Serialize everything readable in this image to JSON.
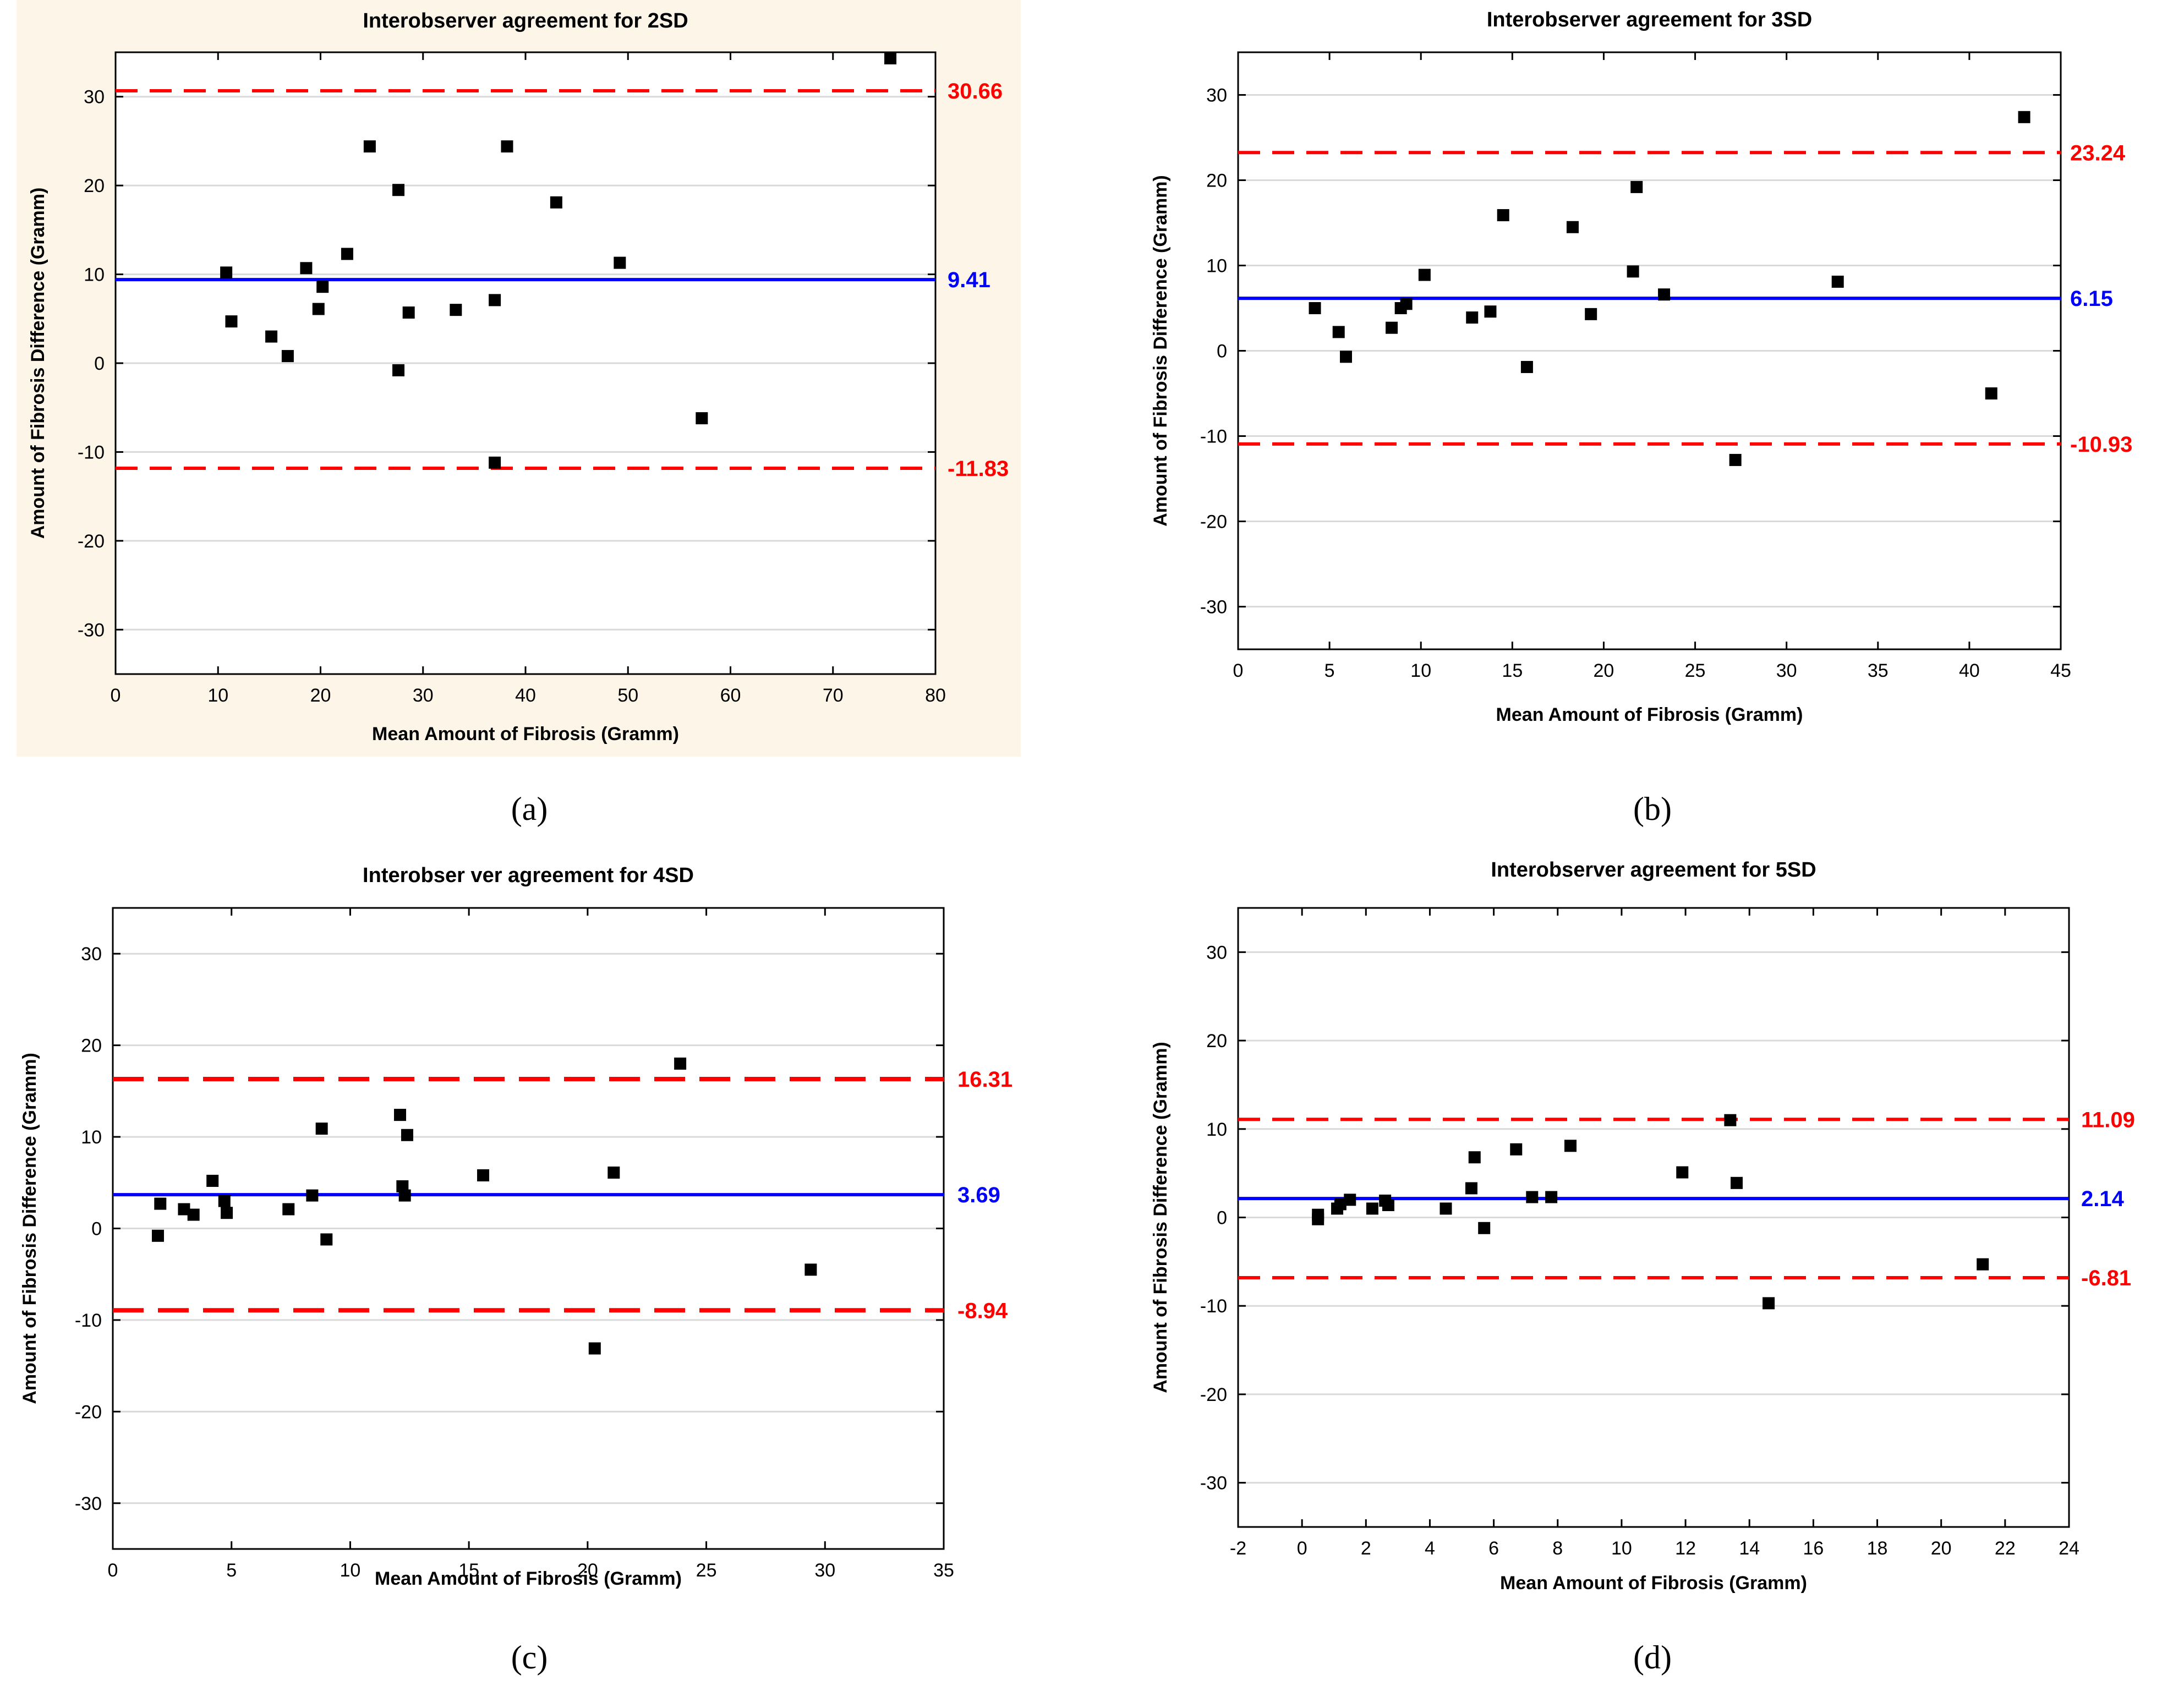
{
  "colors": {
    "mean_line": "#0000ff",
    "limit_line": "#ff0000",
    "point": "#000000",
    "panel_background": "#fdf6e8",
    "grid": "#d9d9d9"
  },
  "chart_data": [
    {
      "type": "scatter",
      "panel_label": "(a)",
      "title": "Interobserver agreement for 2SD",
      "xlabel": "Mean Amount of Fibrosis (Gramm)",
      "ylabel": "Amount of Fibrosis Difference (Gramm)",
      "xlim": [
        0,
        80
      ],
      "ylim": [
        -35,
        35
      ],
      "xticks": [
        0,
        10,
        20,
        30,
        40,
        50,
        60,
        70,
        80
      ],
      "yticks": [
        -30,
        -20,
        -10,
        0,
        10,
        20,
        30
      ],
      "mean_diff": 9.41,
      "upper_loa": 30.66,
      "lower_loa": -11.83,
      "mean_label": "9.41",
      "upper_label": "30.66",
      "lower_label": "-11.83",
      "grid": true,
      "points": [
        [
          10.8,
          10.2
        ],
        [
          11.3,
          4.7
        ],
        [
          15.2,
          3.0
        ],
        [
          16.8,
          0.8
        ],
        [
          18.6,
          10.7
        ],
        [
          19.8,
          6.1
        ],
        [
          20.2,
          8.6
        ],
        [
          22.6,
          12.3
        ],
        [
          24.8,
          24.4
        ],
        [
          27.6,
          19.5
        ],
        [
          27.6,
          -0.8
        ],
        [
          28.6,
          5.7
        ],
        [
          33.2,
          6.0
        ],
        [
          37.0,
          -11.2
        ],
        [
          37.0,
          7.1
        ],
        [
          38.2,
          24.4
        ],
        [
          43.0,
          18.1
        ],
        [
          49.2,
          11.3
        ],
        [
          57.2,
          -6.2
        ],
        [
          75.6,
          34.8
        ]
      ]
    },
    {
      "type": "scatter",
      "panel_label": "(b)",
      "title": "Interobserver agreement for 3SD",
      "xlabel": "Mean Amount of Fibrosis (Gramm)",
      "ylabel": "Amount of Fibrosis Difference (Gramm)",
      "xlim": [
        0,
        45
      ],
      "ylim": [
        -35,
        35
      ],
      "xticks": [
        0,
        5,
        10,
        15,
        20,
        25,
        30,
        35,
        40,
        45
      ],
      "yticks": [
        -30,
        -20,
        -10,
        0,
        10,
        20,
        30
      ],
      "mean_diff": 6.15,
      "upper_loa": 23.24,
      "lower_loa": -10.93,
      "mean_label": "6.15",
      "upper_label": "23.24",
      "lower_label": "-10.93",
      "grid": true,
      "points": [
        [
          4.2,
          5.0
        ],
        [
          5.5,
          2.2
        ],
        [
          5.9,
          -0.7
        ],
        [
          8.4,
          2.7
        ],
        [
          8.9,
          5.0
        ],
        [
          9.2,
          5.5
        ],
        [
          10.2,
          8.9
        ],
        [
          12.8,
          3.9
        ],
        [
          13.8,
          4.6
        ],
        [
          14.5,
          15.9
        ],
        [
          15.8,
          -1.9
        ],
        [
          18.3,
          14.5
        ],
        [
          19.3,
          4.3
        ],
        [
          21.6,
          9.3
        ],
        [
          21.8,
          19.2
        ],
        [
          23.3,
          6.6
        ],
        [
          27.2,
          -12.8
        ],
        [
          32.8,
          8.1
        ],
        [
          41.2,
          -5.0
        ],
        [
          43.0,
          27.4
        ]
      ]
    },
    {
      "type": "scatter",
      "panel_label": "(c)",
      "title": "Interobser ver agreement for 4SD",
      "xlabel": "Mean Amount of Fibrosis (Gramm)",
      "ylabel": "Amount of Fibrosis Difference (Gramm)",
      "xlim": [
        0,
        35
      ],
      "ylim": [
        -35,
        35
      ],
      "xticks": [
        0,
        5,
        10,
        15,
        20,
        25,
        30,
        35
      ],
      "yticks": [
        -30,
        -20,
        -10,
        0,
        10,
        20,
        30
      ],
      "mean_diff": 3.69,
      "upper_loa": 16.31,
      "lower_loa": -8.94,
      "mean_label": "3.69",
      "upper_label": "16.31",
      "lower_label": "-8.94",
      "grid": true,
      "points": [
        [
          1.9,
          -0.8
        ],
        [
          2.0,
          2.7
        ],
        [
          3.0,
          2.1
        ],
        [
          3.4,
          1.5
        ],
        [
          4.2,
          5.2
        ],
        [
          4.7,
          3.0
        ],
        [
          4.8,
          1.7
        ],
        [
          7.4,
          2.1
        ],
        [
          8.4,
          3.6
        ],
        [
          8.8,
          10.9
        ],
        [
          9.0,
          -1.2
        ],
        [
          12.1,
          12.4
        ],
        [
          12.2,
          4.6
        ],
        [
          12.3,
          3.6
        ],
        [
          12.4,
          10.2
        ],
        [
          15.6,
          5.8
        ],
        [
          20.3,
          -13.1
        ],
        [
          21.1,
          6.1
        ],
        [
          23.9,
          18.0
        ],
        [
          29.4,
          -4.5
        ]
      ]
    },
    {
      "type": "scatter",
      "panel_label": "(d)",
      "title": "Interobserver agreement for 5SD",
      "xlabel": "Mean Amount of Fibrosis (Gramm)",
      "ylabel": "Amount of Fibrosis Difference (Gramm)",
      "xlim": [
        -2,
        24
      ],
      "ylim": [
        -35,
        35
      ],
      "xticks": [
        -2,
        0,
        2,
        4,
        6,
        8,
        10,
        12,
        14,
        16,
        18,
        20,
        22,
        24
      ],
      "yticks": [
        -30,
        -20,
        -10,
        0,
        10,
        20,
        30
      ],
      "mean_diff": 2.14,
      "upper_loa": 11.09,
      "lower_loa": -6.81,
      "mean_label": "2.14",
      "upper_label": "11.09",
      "lower_label": "-6.81",
      "grid": true,
      "points": [
        [
          0.5,
          0.3
        ],
        [
          0.5,
          -0.2
        ],
        [
          1.1,
          1.0
        ],
        [
          1.2,
          1.5
        ],
        [
          1.5,
          2.0
        ],
        [
          2.2,
          1.0
        ],
        [
          2.6,
          1.9
        ],
        [
          2.7,
          1.4
        ],
        [
          4.5,
          1.0
        ],
        [
          5.3,
          3.3
        ],
        [
          5.4,
          6.8
        ],
        [
          5.7,
          -1.2
        ],
        [
          6.7,
          7.7
        ],
        [
          7.2,
          2.3
        ],
        [
          7.8,
          2.3
        ],
        [
          8.4,
          8.1
        ],
        [
          11.9,
          5.1
        ],
        [
          13.4,
          11.0
        ],
        [
          13.6,
          3.9
        ],
        [
          14.6,
          -9.7
        ],
        [
          21.3,
          -5.3
        ]
      ]
    }
  ]
}
